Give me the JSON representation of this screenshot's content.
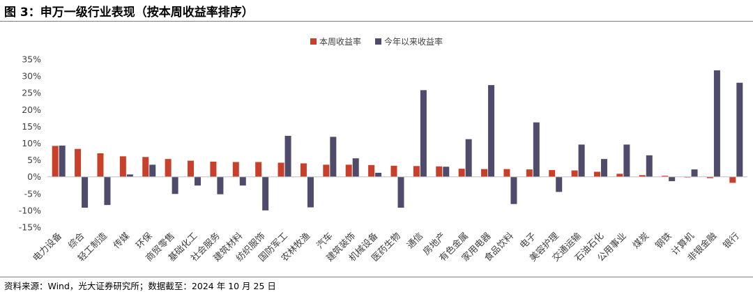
{
  "figure": {
    "title": "图 3：申万一级行业表现（按本周收益率排序）",
    "source": "资料来源：Wind，光大证券研究所；数据截至：2024 年 10 月 25 日"
  },
  "chart_data": {
    "type": "bar",
    "title": "",
    "xlabel": "",
    "ylabel": "",
    "ylim": [
      -15,
      35
    ],
    "yticks": [
      "35%",
      "30%",
      "25%",
      "20%",
      "15%",
      "10%",
      "5%",
      "0%",
      "-5%",
      "-10%",
      "-15%"
    ],
    "ytick_values": [
      35,
      30,
      25,
      20,
      15,
      10,
      5,
      0,
      -5,
      -10,
      -15
    ],
    "grid": false,
    "legend_position": "top-center",
    "categories": [
      "电力设备",
      "综合",
      "轻工制造",
      "传媒",
      "环保",
      "商贸零售",
      "基础化工",
      "社会服务",
      "建筑材料",
      "纺织服饰",
      "国防军工",
      "农林牧渔",
      "汽车",
      "建筑装饰",
      "机械设备",
      "医药生物",
      "通信",
      "房地产",
      "有色金属",
      "家用电器",
      "食品饮料",
      "电子",
      "美容护理",
      "交通运输",
      "石油石化",
      "公用事业",
      "煤炭",
      "钢铁",
      "计算机",
      "非银金融",
      "银行"
    ],
    "series": [
      {
        "name": "本周收益率",
        "color": "#c8402a",
        "values": [
          9.2,
          8.3,
          7.0,
          6.1,
          5.9,
          5.3,
          4.8,
          4.5,
          4.4,
          4.4,
          4.2,
          4.0,
          3.6,
          3.6,
          3.5,
          3.3,
          3.2,
          3.1,
          2.4,
          2.3,
          2.3,
          2.2,
          2.0,
          1.9,
          1.5,
          0.9,
          0.5,
          0.3,
          -0.2,
          -0.4,
          -1.8
        ]
      },
      {
        "name": "今年以来收益率",
        "color": "#4f4c6b",
        "values": [
          9.3,
          -9.2,
          -8.4,
          0.7,
          3.6,
          -5.1,
          -2.6,
          -5.2,
          -2.6,
          -10.0,
          12.2,
          -9.1,
          11.9,
          5.5,
          1.2,
          -9.2,
          25.8,
          3.0,
          11.2,
          27.3,
          -8.1,
          16.2,
          -4.5,
          9.6,
          5.3,
          9.6,
          6.4,
          -1.3,
          2.2,
          31.7,
          28.0
        ]
      }
    ]
  }
}
